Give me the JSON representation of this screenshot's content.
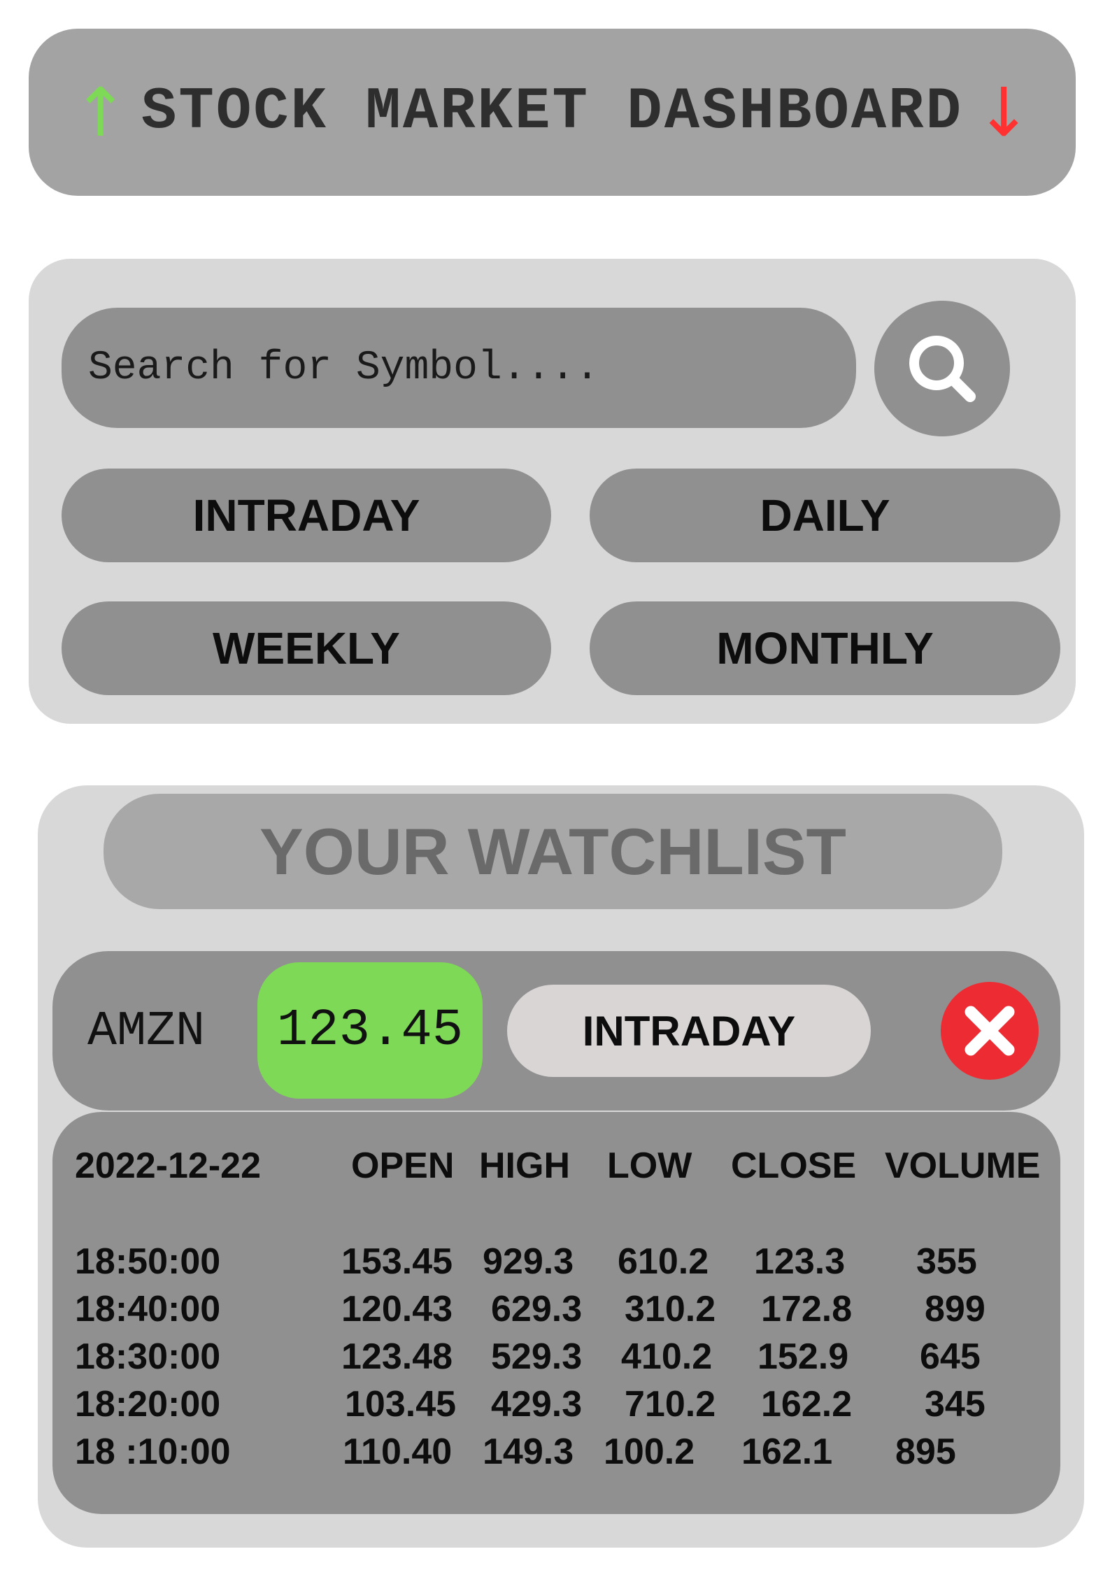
{
  "header": {
    "title": "STOCK MARKET DASHBOARD",
    "up_arrow": "↑",
    "down_arrow": "↓",
    "up_color": "#7ed957",
    "down_color": "#ff3131"
  },
  "search": {
    "placeholder": "Search for Symbol....",
    "button_icon": "search-icon"
  },
  "ranges": {
    "intraday": "INTRADAY",
    "daily": "DAILY",
    "weekly": "WEEKLY",
    "monthly": "MONTHLY"
  },
  "watchlist": {
    "title": "YOUR WATCHLIST",
    "item": {
      "symbol": "AMZN",
      "price": "123.45",
      "price_color": "#7ed957",
      "range": "INTRADAY",
      "remove_icon": "close-icon"
    },
    "table": {
      "date": "2022-12-22",
      "columns": [
        "OPEN",
        "HIGH",
        "LOW",
        "CLOSE",
        "VOLUME"
      ],
      "rows": [
        {
          "time": "18:50:00",
          "open": "153.45",
          "high": "929.3",
          "low": "610.2",
          "close": "123.3",
          "volume": "355"
        },
        {
          "time": "18:40:00",
          "open": "120.43",
          "high": "629.3",
          "low": "310.2",
          "close": "172.8",
          "volume": "899"
        },
        {
          "time": "18:30:00",
          "open": "123.48",
          "high": "529.3",
          "low": "410.2",
          "close": "152.9",
          "volume": "645"
        },
        {
          "time": "18:20:00",
          "open": "103.45",
          "high": "429.3",
          "low": "710.2",
          "close": "162.2",
          "volume": "345"
        },
        {
          "time": "18 :10:00",
          "open": "110.40",
          "high": "149.3",
          "low": "100.2",
          "close": "162.1",
          "volume": "895"
        }
      ]
    }
  }
}
